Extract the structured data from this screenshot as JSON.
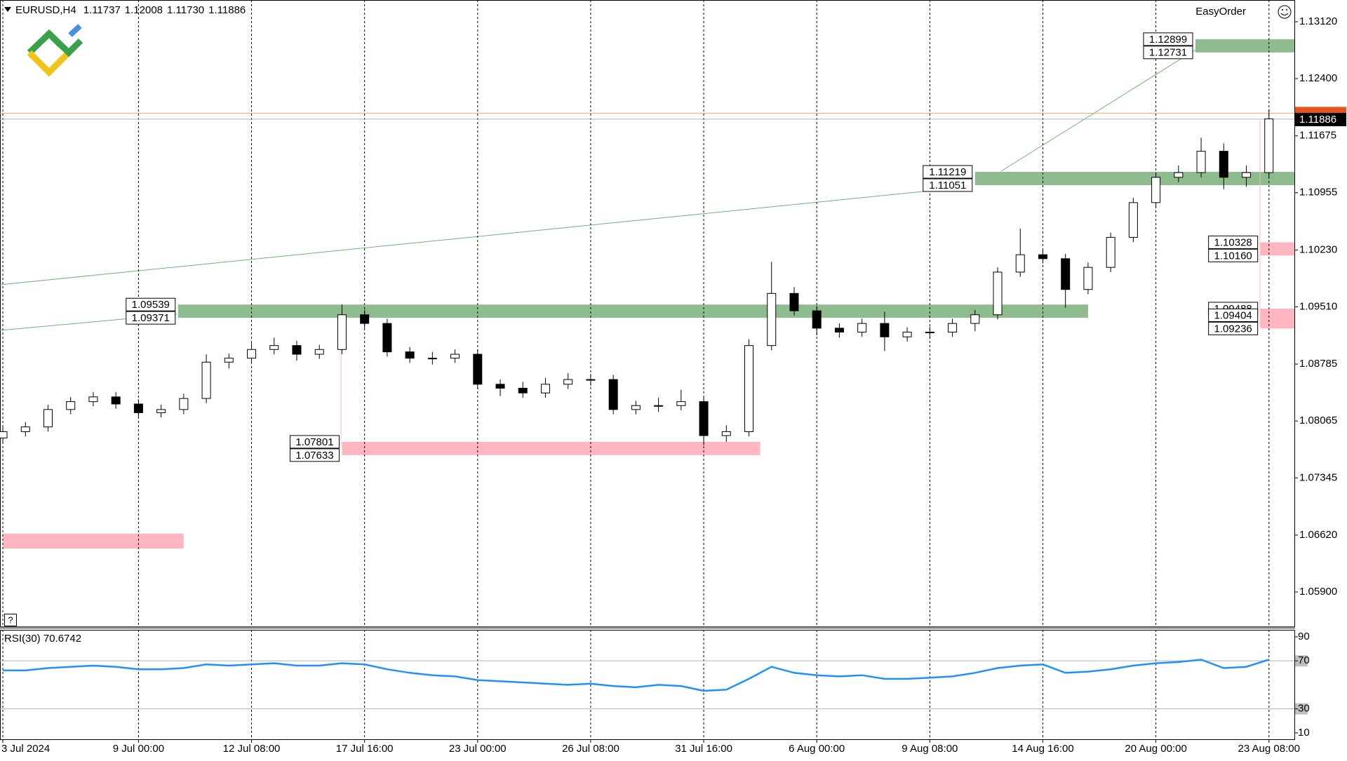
{
  "chart_data": [
    {
      "type": "candlestick",
      "title": "EURUSD,H4",
      "quote": [
        1.11737,
        1.12008,
        {
          "value": 1.1173,
          "label": "1.11730"
        },
        1.11886
      ],
      "tool": "EasyOrder",
      "x": [
        0,
        4,
        8,
        12,
        16,
        20,
        24,
        28,
        32,
        36,
        40,
        44,
        48,
        52,
        56,
        60,
        64,
        68,
        72,
        76,
        80,
        84,
        88,
        92,
        96,
        100,
        104,
        108,
        112,
        116,
        120,
        124,
        128,
        132,
        136,
        140,
        144,
        148,
        152,
        156,
        160,
        164,
        168,
        172,
        176,
        180,
        184,
        188,
        192,
        196,
        200,
        204,
        208,
        212,
        216,
        220,
        224
      ],
      "open": [
        1.0785,
        1.0793,
        1.0799,
        1.0821,
        1.0831,
        1.0837,
        1.0828,
        1.0817,
        1.0821,
        1.0835,
        1.0881,
        1.0886,
        1.0897,
        1.0902,
        1.0891,
        1.0897,
        1.0941,
        1.093,
        1.0894,
        1.0886,
        1.0886,
        1.0891,
        1.0853,
        1.0848,
        1.0842,
        1.0853,
        1.0859,
        1.0859,
        1.0821,
        1.0826,
        1.0826,
        1.0831,
        1.0788,
        1.0793,
        1.0902,
        1.0968,
        1.0946,
        1.0924,
        1.0919,
        1.093,
        1.0913,
        1.0919,
        1.0919,
        1.093,
        1.0941,
        1.0995,
        1.1017,
        1.1012,
        1.0973,
        1.1001,
        1.1039,
        1.1083,
        1.1115,
        1.1121,
        1.1148,
        1.1115,
        1.1121
      ],
      "high": [
        1.0799,
        1.0805,
        1.0827,
        1.0837,
        1.0843,
        1.0843,
        1.0834,
        1.0827,
        1.0841,
        1.0891,
        1.0892,
        1.0905,
        1.0912,
        1.0908,
        1.0903,
        1.0954,
        1.0947,
        1.0936,
        1.09,
        1.0894,
        1.0897,
        1.0897,
        1.0859,
        1.0856,
        1.0861,
        1.0867,
        1.0866,
        1.0865,
        1.0832,
        1.0836,
        1.0846,
        1.0837,
        1.0801,
        1.091,
        1.1008,
        1.0976,
        1.0952,
        1.093,
        1.0936,
        1.0945,
        1.0925,
        1.0926,
        1.0936,
        1.0947,
        1.1001,
        1.105,
        1.1023,
        1.1018,
        1.1007,
        1.1045,
        1.1089,
        1.1121,
        1.113,
        1.1165,
        1.1158,
        1.113,
        1.1201
      ],
      "low": [
        1.0779,
        1.0787,
        1.0793,
        1.0815,
        1.0825,
        1.0822,
        1.0811,
        1.0811,
        1.0815,
        1.0829,
        1.0873,
        1.088,
        1.0891,
        1.0883,
        1.0885,
        1.0891,
        1.0924,
        1.0888,
        1.088,
        1.0878,
        1.088,
        1.0847,
        1.0838,
        1.0836,
        1.0836,
        1.0847,
        1.0851,
        1.0815,
        1.0815,
        1.0818,
        1.082,
        1.0776,
        1.078,
        1.0787,
        1.0896,
        1.094,
        1.0915,
        1.0912,
        1.0913,
        1.0895,
        1.0907,
        1.0912,
        1.0913,
        1.092,
        1.0935,
        1.0989,
        1.1006,
        1.095,
        1.0967,
        1.0995,
        1.1033,
        1.1077,
        1.1109,
        1.1115,
        1.11,
        1.1103,
        1.1115
      ],
      "close": [
        1.0793,
        1.0799,
        1.0821,
        1.0831,
        1.0837,
        1.0828,
        1.0817,
        1.0821,
        1.0835,
        1.0881,
        1.0886,
        1.0897,
        1.0902,
        1.0891,
        1.0897,
        1.0941,
        1.093,
        1.0894,
        1.0886,
        1.0886,
        1.0891,
        1.0853,
        1.0848,
        1.0842,
        1.0853,
        1.0859,
        1.0859,
        1.0821,
        1.0826,
        1.0826,
        1.0831,
        1.0788,
        1.0793,
        1.0902,
        1.0968,
        1.0946,
        1.0924,
        1.0919,
        1.093,
        1.0913,
        1.0919,
        1.0919,
        1.093,
        1.0941,
        1.0995,
        1.1017,
        1.1012,
        1.0973,
        1.1001,
        1.1039,
        1.1083,
        1.1115,
        1.1121,
        1.1148,
        1.1115,
        1.1121,
        1.1189
      ],
      "up_color": "#ffffff",
      "down_color": "#000000",
      "xlim": [
        -0.5,
        228.5
      ],
      "ylim": [
        1.05465,
        1.13395
      ],
      "yticks": [
        {
          "value": 1.1312,
          "label": "1.13120"
        },
        {
          "value": 1.124,
          "label": "1.12400"
        },
        1.11675,
        1.10955,
        {
          "value": 1.1023,
          "label": "1.10230"
        },
        {
          "value": 1.0951,
          "label": "1.09510"
        },
        1.08785,
        1.08065,
        1.07345,
        {
          "value": 1.0662,
          "label": "1.06620"
        },
        {
          "value": 1.059,
          "label": "1.05900"
        }
      ],
      "xticks": [
        {
          "value": 0,
          "label": "3 Jul 2024"
        },
        {
          "value": 24,
          "label": "9 Jul 00:00"
        },
        {
          "value": 44,
          "label": "12 Jul 08:00"
        },
        {
          "value": 64,
          "label": "17 Jul 16:00"
        },
        {
          "value": 84,
          "label": "23 Jul 00:00"
        },
        {
          "value": 104,
          "label": "26 Jul 08:00"
        },
        {
          "value": 124,
          "label": "31 Jul 16:00"
        },
        {
          "value": 144,
          "label": "6 Aug 00:00"
        },
        {
          "value": 164,
          "label": "9 Aug 08:00"
        },
        {
          "value": 184,
          "label": "14 Aug 16:00"
        },
        {
          "value": 204,
          "label": "20 Aug 00:00"
        },
        {
          "value": 224,
          "label": "23 Aug 08:00"
        }
      ],
      "grid": true,
      "zones": [
        {
          "from": 211,
          "to": 228.5,
          "levels": [
            1.12899,
            1.12731
          ],
          "color": "#8fbc8f",
          "labels": true
        },
        {
          "from": 172,
          "to": 228.5,
          "levels": [
            1.11219,
            1.11051
          ],
          "color": "#8fbc8f",
          "labels": true
        },
        {
          "from": 31,
          "to": 192,
          "levels": [
            1.09539,
            1.09371
          ],
          "color": "#8fbc8f",
          "labels": true
        },
        {
          "from": 60,
          "to": 134,
          "levels": [
            1.07801,
            1.07633
          ],
          "color": "#ffb6c1",
          "labels": true
        },
        {
          "from": 222.5,
          "to": 228.5,
          "levels": [
            1.10328,
            {
              "value": 1.1016,
              "label": "1.10160"
            }
          ],
          "color": "#ffb6c1",
          "labels": true
        },
        {
          "from": 222.5,
          "to": 228.5,
          "levels": [
            1.09488,
            1.09404,
            1.09236
          ],
          "color": "#ffb6c1",
          "labels": true
        },
        {
          "from": 0,
          "to": 32,
          "levels": [
            1.0664,
            1.0645
          ],
          "color": "#ffb6c1",
          "labels": false
        }
      ],
      "ask": 1.11962,
      "ask_color": "#f4a460",
      "bid": 1.11886,
      "bid_color": "#b0b0b0"
    },
    {
      "type": "line",
      "title": "RSI(30) 70.6742",
      "x": [
        0,
        4,
        8,
        12,
        16,
        20,
        24,
        28,
        32,
        36,
        40,
        44,
        48,
        52,
        56,
        60,
        64,
        68,
        72,
        76,
        80,
        84,
        88,
        92,
        96,
        100,
        104,
        108,
        112,
        116,
        120,
        124,
        128,
        132,
        136,
        140,
        144,
        148,
        152,
        156,
        160,
        164,
        168,
        172,
        176,
        180,
        184,
        188,
        192,
        196,
        200,
        204,
        208,
        212,
        216,
        220,
        224
      ],
      "values": [
        62,
        62,
        64,
        65,
        66,
        65,
        63,
        63,
        64,
        67,
        66,
        67,
        68,
        66,
        66,
        68,
        67,
        63,
        60,
        58,
        57,
        54,
        53,
        52,
        51,
        50,
        51,
        49,
        48,
        50,
        49,
        45,
        46,
        55,
        65,
        60,
        58,
        57,
        58,
        55,
        55,
        56,
        57,
        60,
        64,
        66,
        67,
        60,
        61,
        63,
        66,
        68,
        69,
        71,
        64,
        65,
        71
      ],
      "color": "#1e90ff",
      "ylim": [
        4.7,
        95.8
      ],
      "yticks": [
        90,
        70,
        30,
        10
      ],
      "levels": [
        70,
        30
      ]
    }
  ]
}
